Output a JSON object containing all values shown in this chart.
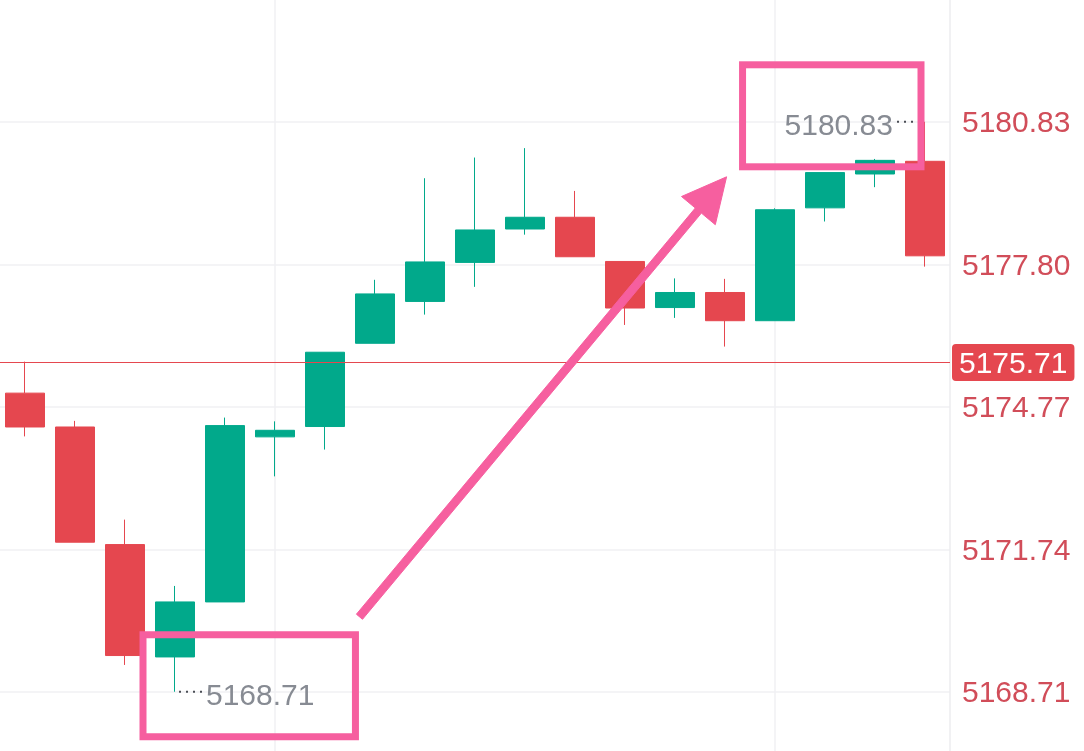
{
  "chart_data": {
    "type": "candlestick",
    "categories": [
      null,
      null,
      null,
      null,
      null,
      null,
      null,
      null,
      null,
      null,
      null,
      null,
      null,
      null,
      null,
      null,
      null,
      null,
      null
    ],
    "ohlc": [
      [
        5175.06,
        5175.73,
        5174.14,
        5174.34
      ],
      [
        5174.34,
        5174.47,
        5171.89,
        5171.89
      ],
      [
        5171.84,
        5172.37,
        5169.28,
        5169.48
      ],
      [
        5169.45,
        5170.96,
        5168.71,
        5170.62
      ],
      [
        5170.62,
        5174.54,
        5170.62,
        5174.37
      ],
      [
        5174.13,
        5174.46,
        5173.29,
        5174.27
      ],
      [
        5174.35,
        5175.93,
        5173.86,
        5175.93
      ],
      [
        5176.12,
        5177.47,
        5176.12,
        5177.17
      ],
      [
        5177.01,
        5179.63,
        5176.73,
        5177.85
      ],
      [
        5177.84,
        5180.07,
        5177.32,
        5178.53
      ],
      [
        5178.55,
        5180.27,
        5178.43,
        5178.8
      ],
      [
        5178.8,
        5179.36,
        5177.96,
        5177.96
      ],
      [
        5177.86,
        5177.86,
        5176.51,
        5176.87
      ],
      [
        5176.88,
        5177.5,
        5176.66,
        5177.2
      ],
      [
        5177.2,
        5177.49,
        5176.05,
        5176.6
      ],
      [
        5176.6,
        5178.99,
        5176.6,
        5178.96
      ],
      [
        5179.0,
        5179.75,
        5178.71,
        5179.75
      ],
      [
        5179.72,
        5180.04,
        5179.44,
        5180.01
      ],
      [
        5179.99,
        5180.83,
        5177.75,
        5177.98
      ]
    ],
    "colors": [
      "#e5474f",
      "#e5474f",
      "#e5474f",
      "#01a98b",
      "#01a98b",
      "#01a98b",
      "#01a98b",
      "#01a98b",
      "#01a98b",
      "#01a98b",
      "#01a98b",
      "#e5474f",
      "#e5474f",
      "#01a98b",
      "#e5474f",
      "#01a98b",
      "#01a98b",
      "#01a98b",
      "#e5474f"
    ],
    "ylim": [
      5167.45,
      5183.42
    ],
    "yticks": [
      5168.71,
      5171.74,
      5174.77,
      {
        "value": 5177.8,
        "label": "5177.80"
      },
      5180.83
    ],
    "grid": true,
    "tick_labels": "y",
    "ref_lines": [
      {
        "axis": "y",
        "value": 5175.71,
        "label": "5175.71",
        "color": "#e5474f"
      }
    ],
    "annotations": [
      "5180.83",
      "5168.71"
    ]
  }
}
